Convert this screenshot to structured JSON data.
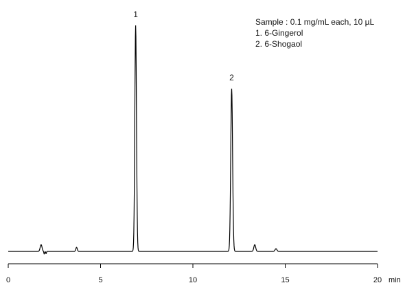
{
  "chart_data": {
    "type": "line",
    "title": "",
    "xlabel": "",
    "ylabel": "",
    "xlim": [
      0,
      20
    ],
    "x_unit": "min",
    "x_ticks": [
      0,
      5,
      10,
      15,
      20
    ],
    "x_tick_labels": [
      "0",
      "5",
      "10",
      "15",
      "20"
    ],
    "grid": false,
    "legend_position": "top-right",
    "sample_info": "Sample : 0.1 mg/mL each, 10 µL",
    "compounds": [
      "1. 6-Gingerol",
      "2. 6-Shogaol"
    ],
    "peak_labels": [
      "1",
      "2"
    ],
    "series": [
      {
        "color": "#000000",
        "baseline": 0,
        "peaks": [
          {
            "x": 1.78,
            "height": 0.03,
            "width": 0.05
          },
          {
            "x": 1.95,
            "height": -0.012,
            "width": 0.02
          },
          {
            "x": 2.05,
            "height": -0.01,
            "width": 0.02
          },
          {
            "x": 3.7,
            "height": 0.018,
            "width": 0.04
          },
          {
            "x": 6.9,
            "height": 1.0,
            "width": 0.045,
            "label": "1"
          },
          {
            "x": 12.1,
            "height": 0.72,
            "width": 0.05,
            "label": "2"
          },
          {
            "x": 13.35,
            "height": 0.03,
            "width": 0.05
          },
          {
            "x": 14.5,
            "height": 0.012,
            "width": 0.05
          }
        ]
      }
    ]
  }
}
